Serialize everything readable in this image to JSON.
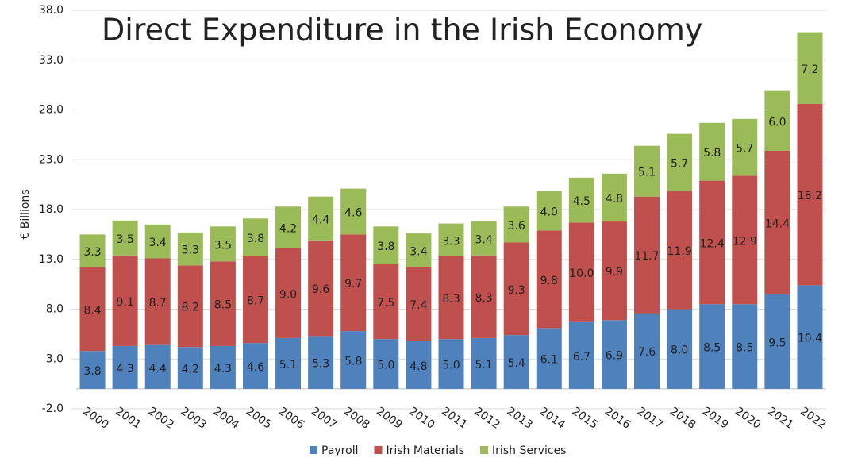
{
  "chart_data": {
    "type": "stacked_bar",
    "title": "Direct Expenditure in the Irish Economy",
    "y_label": "€ Billions",
    "categories": [
      "2000",
      "2001",
      "2002",
      "2003",
      "2004",
      "2005",
      "2006",
      "2007",
      "2008",
      "2009",
      "2010",
      "2011",
      "2012",
      "2013",
      "2014",
      "2015",
      "2016",
      "2017",
      "2018",
      "2019",
      "2020",
      "2021",
      "2022"
    ],
    "series": [
      {
        "name": "Payroll",
        "color": "#4f81bd",
        "values": [
          3.8,
          4.3,
          4.4,
          4.2,
          4.3,
          4.6,
          5.1,
          5.3,
          5.8,
          5.0,
          4.8,
          5.0,
          5.1,
          5.4,
          6.1,
          6.7,
          6.9,
          7.6,
          8.0,
          8.5,
          8.5,
          9.5,
          10.4
        ],
        "value_labels": [
          "3.8",
          "4.3",
          "4.4",
          "4.2",
          "4.3",
          "4.6",
          "5.1",
          "5.3",
          "5.8",
          "5.0",
          "4.8",
          "5.0",
          "5.1",
          "5.4",
          "6.1",
          "6.7",
          "6.9",
          "7.6",
          "8.0",
          "8.5",
          "8.5",
          "9.5",
          "10.4"
        ]
      },
      {
        "name": "Irish Materials",
        "color": "#c0504d",
        "values": [
          8.4,
          9.1,
          8.7,
          8.2,
          8.5,
          8.7,
          9.0,
          9.6,
          9.7,
          7.5,
          7.4,
          8.3,
          8.3,
          9.3,
          9.8,
          10.0,
          9.9,
          11.7,
          11.9,
          12.4,
          12.9,
          14.4,
          18.2
        ],
        "value_labels": [
          "8.4",
          "9.1",
          "8.7",
          "8.2",
          "8.5",
          "8.7",
          "9.0",
          "9.6",
          "9.7",
          "7.5",
          "7.4",
          "8.3",
          "8.3",
          "9.3",
          "9.8",
          "10.0",
          "9.9",
          "11.7",
          "11.9",
          "12.4",
          "12.9",
          "14.4",
          "18.2"
        ]
      },
      {
        "name": "Irish Services",
        "color": "#9bbb59",
        "values": [
          3.3,
          3.5,
          3.4,
          3.3,
          3.5,
          3.8,
          4.2,
          4.4,
          4.6,
          3.8,
          3.4,
          3.3,
          3.4,
          3.6,
          4.0,
          4.5,
          4.8,
          5.1,
          5.7,
          5.8,
          5.7,
          6.0,
          7.2
        ],
        "value_labels": [
          "3.3",
          "3.5",
          "3.4",
          "3.3",
          "3.5",
          "3.8",
          "4.2",
          "4.4",
          "4.6",
          "3.8",
          "3.4",
          "3.3",
          "3.4",
          "3.6",
          "4.0",
          "4.5",
          "4.8",
          "5.1",
          "5.7",
          "5.8",
          "5.7",
          "6.0",
          "7.2"
        ]
      }
    ],
    "ylim": [
      -2,
      38
    ],
    "yticks": [
      {
        "value": -2,
        "label": "-2.0"
      },
      {
        "value": 3,
        "label": "3.0"
      },
      {
        "value": 8,
        "label": "8.0"
      },
      {
        "value": 13,
        "label": "13.0"
      },
      {
        "value": 18,
        "label": "18.0"
      },
      {
        "value": 23,
        "label": "23.0"
      },
      {
        "value": 28,
        "label": "28.0"
      },
      {
        "value": 33,
        "label": "33.0"
      },
      {
        "value": 38,
        "label": "38.0"
      }
    ],
    "grid": true,
    "legend": "bottom"
  }
}
